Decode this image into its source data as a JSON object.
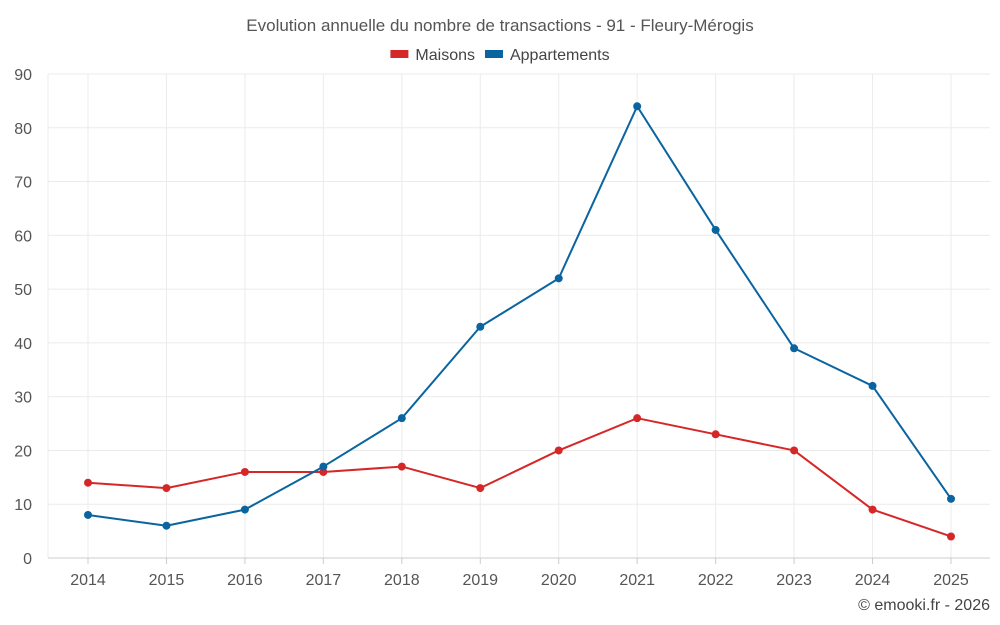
{
  "chart_data": {
    "type": "line",
    "title": "Evolution annuelle du nombre de transactions - 91 - Fleury-Mérogis",
    "categories": [
      "2014",
      "2015",
      "2016",
      "2017",
      "2018",
      "2019",
      "2020",
      "2021",
      "2022",
      "2023",
      "2024",
      "2025"
    ],
    "series": [
      {
        "name": "Maisons",
        "color": "#d62728",
        "values": [
          14,
          13,
          16,
          16,
          17,
          13,
          20,
          26,
          23,
          20,
          9,
          4
        ]
      },
      {
        "name": "Appartements",
        "color": "#0a64a0",
        "values": [
          8,
          6,
          9,
          17,
          26,
          43,
          52,
          84,
          61,
          39,
          32,
          11
        ]
      }
    ],
    "ylim": [
      0,
      90
    ],
    "yticks": [
      0,
      10,
      20,
      30,
      40,
      50,
      60,
      70,
      80,
      90
    ],
    "grid": true,
    "legend_position": "top-center",
    "xlabel": "",
    "ylabel": ""
  },
  "credit": "© emooki.fr - 2026"
}
